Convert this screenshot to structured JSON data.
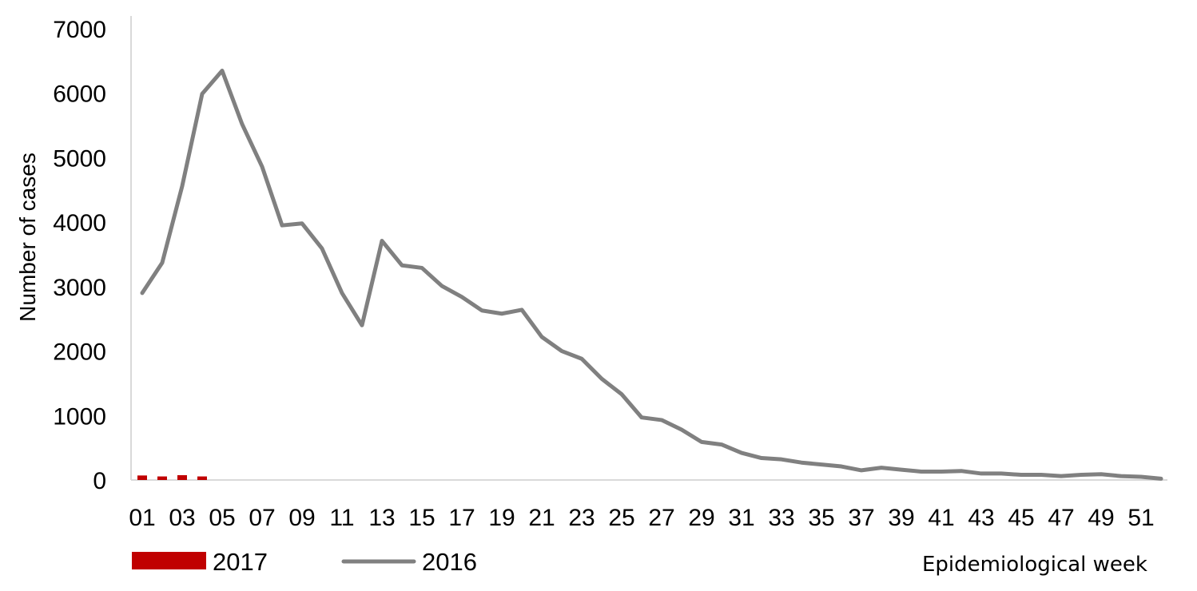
{
  "chart_data": {
    "type": "bar",
    "xlabel": "Epidemiological week",
    "ylabel": "Number of cases",
    "ylim": [
      0,
      7000
    ],
    "yticks": [
      0,
      1000,
      2000,
      3000,
      4000,
      5000,
      6000,
      7000
    ],
    "x_tick_labels": [
      "01",
      "03",
      "05",
      "07",
      "09",
      "11",
      "13",
      "15",
      "17",
      "19",
      "21",
      "23",
      "25",
      "27",
      "29",
      "31",
      "33",
      "35",
      "37",
      "39",
      "41",
      "43",
      "45",
      "47",
      "49",
      "51"
    ],
    "grid": false,
    "legend_position": "bottom",
    "series": [
      {
        "name": "2017",
        "type": "bar",
        "color": "#c00000",
        "weeks": [
          1,
          2,
          3,
          4
        ],
        "values": [
          70,
          55,
          75,
          55
        ]
      },
      {
        "name": "2016",
        "type": "line",
        "color": "#808080",
        "weeks": [
          1,
          2,
          3,
          4,
          5,
          6,
          7,
          8,
          9,
          10,
          11,
          12,
          13,
          14,
          15,
          16,
          17,
          18,
          19,
          20,
          21,
          22,
          23,
          24,
          25,
          26,
          27,
          28,
          29,
          30,
          31,
          32,
          33,
          34,
          35,
          36,
          37,
          38,
          39,
          40,
          41,
          42,
          43,
          44,
          45,
          46,
          47,
          48,
          49,
          50,
          51,
          52
        ],
        "values": [
          2900,
          3370,
          4560,
          5990,
          6350,
          5520,
          4860,
          3950,
          3980,
          3590,
          2900,
          2400,
          3710,
          3330,
          3290,
          3010,
          2840,
          2630,
          2580,
          2640,
          2220,
          2000,
          1880,
          1570,
          1330,
          970,
          930,
          780,
          590,
          550,
          420,
          340,
          320,
          270,
          240,
          210,
          150,
          190,
          160,
          130,
          130,
          140,
          100,
          100,
          80,
          80,
          60,
          80,
          90,
          60,
          50,
          20
        ]
      }
    ]
  }
}
